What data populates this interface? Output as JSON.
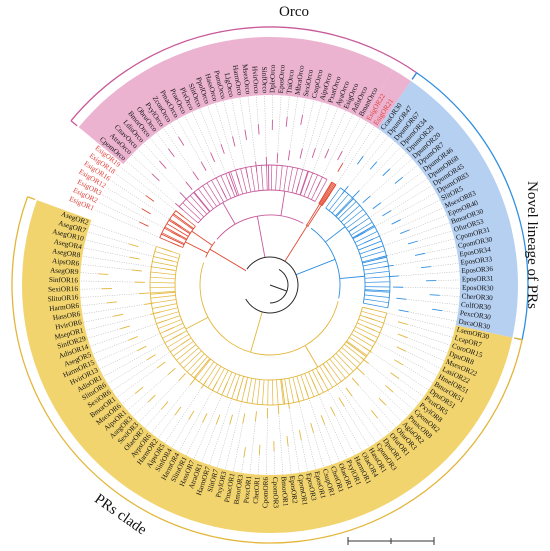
{
  "colors": {
    "orco": "#e8a6c8",
    "orco_line": "#c85a9a",
    "novel": "#a9c8ef",
    "novel_line": "#2f8ee0",
    "prs": "#f0cc55",
    "prs_line": "#e3b63b",
    "red_branch": "#e24a33",
    "dark_branch": "#2b2b2b"
  },
  "clades": {
    "orco": {
      "label": "Orco"
    },
    "novel": {
      "label": "Novel lineage of PRs"
    },
    "prs": {
      "label": "PRs clade"
    }
  },
  "leaves": {
    "red_top": [
      "EsigOR1",
      "EsigOR2",
      "EsigOR3",
      "EsigOR12",
      "EsigOR16",
      "EsigOR18",
      "EsigOR19"
    ],
    "orco": [
      "CpomOrco",
      "AtraOrco",
      "CnavOrco",
      "LdisOrco",
      "BmorOrco",
      "ObruOrco",
      "PxylOrco",
      "ZconOrco",
      "PmacOrco",
      "PraeOrco",
      "PlxOrco",
      "SlitOrco",
      "PpolOrco",
      "HassOrco",
      "PunuOrco",
      "LlgOrco",
      "HarmOrco",
      "MsexOrco",
      "HvirOrco",
      "SinfOrco",
      "DpleOrco",
      "EposOrco",
      "TniOrco",
      "MbraOrco",
      "SexiOrco",
      "CsupOrco",
      "AipsOrco",
      "PxutOrco",
      "AyaOrco",
      "EsigOrco",
      "AdisOrco",
      "BmanOrco"
    ],
    "red_bottom": [
      "EsigOR22",
      "EsigOR21"
    ],
    "novel": [
      "CcasOR30",
      "DpumOR47",
      "DpumOR67",
      "DpumOR34",
      "DpumOR29",
      "DpumOR20",
      "DpumOR7",
      "DpumOR46",
      "DpumOR68",
      "DpumOR45",
      "DpumOR83",
      "SlitOR5",
      "MsexOR83",
      "EposOR40",
      "BmorOR30",
      "OfurOR53",
      "CpomOR31",
      "CpomOR30",
      "EposOR34",
      "EposOR33",
      "EposOR36",
      "EposOR31",
      "EposOR30",
      "CherOR30",
      "ColfOR30",
      "PexcOR30",
      "DacaOR30"
    ],
    "prs": [
      "LsemOR30",
      "LcapOR7",
      "CoroOR15",
      "DpuOR8",
      "MsexOR22",
      "LasiOR22",
      "HmelOR51",
      "BmorOR51",
      "DpuOR51",
      "PxutOR5",
      "PxylOR8",
      "CpomOR2",
      "PmacOR8",
      "AglaOR2",
      "OfurOR3",
      "OfurOR1",
      "DpuOR1",
      "CpomOR3",
      "HassOR1",
      "OlaeOR4",
      "HarmOR1",
      "PxylOR1",
      "OlaeOR1",
      "ChetOR1",
      "CsupOR1",
      "EposOR1",
      "EposOR3",
      "CpomOR1",
      "EposOR2",
      "BmorOR1",
      "CpomOR3",
      "CpomOR6",
      "ChetOR1",
      "PexcOR1",
      "BmorOR3",
      "PmacOR1",
      "PxylOR3",
      "SlitOR7",
      "HarmOR7",
      "AtraOR1",
      "HassOR7",
      "SlituOR1",
      "HarmOR4",
      "SinfOR4",
      "AipsOR5",
      "HarmOR2",
      "AypsOR6",
      "OlaeOR7",
      "SexiOR3",
      "AsegOR3",
      "AipsOR1",
      "MsexOR6",
      "BmorOR1",
      "SexiOR6",
      "SlituOR6",
      "AdisOR1",
      "HvirOR13",
      "HarmOR15",
      "AsegOR5",
      "AdisOR14",
      "SinfOR29",
      "MsepOR1",
      "HvirOR6",
      "HassOR6",
      "HarmOR6",
      "SlituOR16",
      "SexiOR16",
      "SinfOR16",
      "AsegOR9",
      "AipsOR6",
      "AsegOR8",
      "AsegOR4",
      "AsegOR10",
      "AsegOR7",
      "AsegOR2"
    ]
  }
}
